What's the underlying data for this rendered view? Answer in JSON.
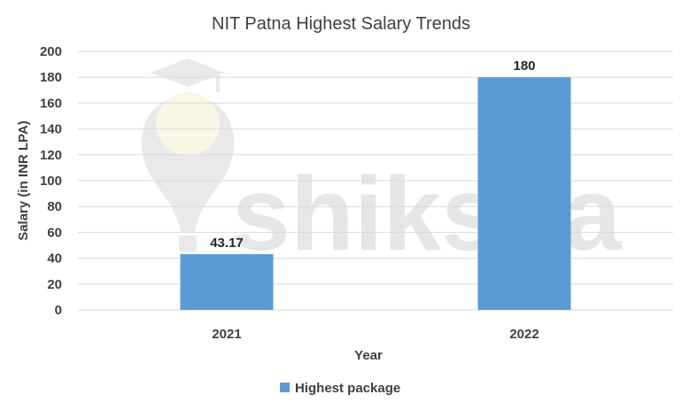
{
  "chart_data": {
    "type": "bar",
    "title": "NIT Patna Highest Salary Trends",
    "xlabel": "Year",
    "ylabel": "Salary (in INR LPA)",
    "categories": [
      "2021",
      "2022"
    ],
    "series": [
      {
        "name": "Highest package",
        "values": [
          43.17,
          180
        ],
        "color": "#5B9BD5"
      }
    ],
    "data_labels": [
      "43.17",
      "180"
    ],
    "ylim": [
      0,
      200
    ],
    "yticks": [
      0,
      20,
      40,
      60,
      80,
      100,
      120,
      140,
      160,
      180,
      200
    ],
    "grid": true,
    "legend_position": "bottom"
  },
  "watermark": {
    "text": "shiksha",
    "icon": "graduation-cap-bulb-logo"
  },
  "colors": {
    "grid": "#d9d9d9",
    "text": "#404040",
    "watermark": "#e6e6e6"
  }
}
